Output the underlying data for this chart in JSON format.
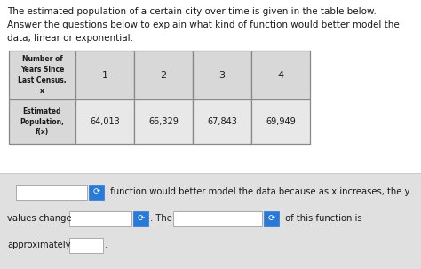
{
  "title_lines": [
    "The estimated population of a certain city over time is given in the table below.",
    "Answer the questions below to explain what kind of function would better model the",
    "data, linear or exponential."
  ],
  "col_header_label": "Number of\nYears Since\nLast Census,\nx",
  "col_header_values": [
    "1",
    "2",
    "3",
    "4"
  ],
  "row2_label": "Estimated\nPopulation,\nf(x)",
  "row2_values": [
    "64,013",
    "66,329",
    "67,843",
    "69,949"
  ],
  "bottom_line1_text": " function would better model the data because as x increases, the y",
  "bottom_line2a": "values change",
  "bottom_line2b": ". The",
  "bottom_line2c": " of this function is",
  "bottom_line3a": "approximately",
  "page_bg": "#f5f5f5",
  "white": "#ffffff",
  "table_header_bg": "#d8d8d8",
  "table_data_bg": "#e8e8e8",
  "bottom_bg": "#e0e0e0",
  "text_color": "#1a1a1a",
  "border_color": "#888888",
  "dropdown_blue": "#2979d6",
  "input_bg": "#ffffff"
}
